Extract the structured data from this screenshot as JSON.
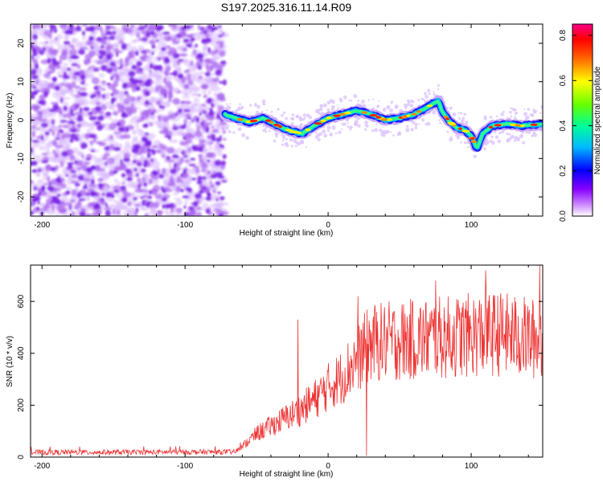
{
  "title": "S197.2025.316.11.14.R09",
  "chart_data": [
    {
      "type": "heatmap",
      "name": "spectrogram",
      "xlabel": "Height of straight line (km)",
      "ylabel": "Frequency (Hz)",
      "xlim": [
        -208,
        150
      ],
      "ylim": [
        -25,
        25
      ],
      "xticks": [
        -200,
        -100,
        0,
        100
      ],
      "yticks": [
        -20,
        -10,
        0,
        10,
        20
      ],
      "noise_region_x": [
        -208,
        -72
      ],
      "signal_region_x": [
        -72,
        150
      ],
      "ridge": {
        "x": [
          -72,
          -65,
          -55,
          -45,
          -35,
          -25,
          -18,
          -10,
          0,
          10,
          20,
          30,
          40,
          50,
          60,
          70,
          77,
          80,
          85,
          90,
          95,
          100,
          104,
          108,
          115,
          125,
          135,
          150
        ],
        "freq": [
          1.5,
          0.5,
          -0.5,
          0.5,
          -1.5,
          -3.0,
          -3.5,
          -1.5,
          0.5,
          1.5,
          2.5,
          1.5,
          0.0,
          0.5,
          1.5,
          3.5,
          5.0,
          2.0,
          -0.5,
          -2.0,
          -2.5,
          -4.0,
          -7.5,
          -3.5,
          -1.5,
          -1.0,
          -1.5,
          -1.0
        ]
      },
      "colorbar": {
        "label": "Normalized spectral amplitude",
        "range": [
          0.0,
          0.85
        ],
        "ticks": [
          0.0,
          0.2,
          0.4,
          0.6,
          0.8
        ],
        "tick_labels": [
          "0.0",
          "0.2",
          "0.4",
          "0.6",
          "0.8"
        ],
        "colors": [
          "#ffffff",
          "#8800ff",
          "#0000ff",
          "#00ddff",
          "#00ff66",
          "#ffff00",
          "#ff6600",
          "#ff0000",
          "#ff0088"
        ]
      }
    },
    {
      "type": "line",
      "name": "snr",
      "xlabel": "Height of straight line (km)",
      "ylabel": "SNR (10 * v/v)",
      "xlim": [
        -208,
        150
      ],
      "ylim": [
        0,
        740
      ],
      "xticks": [
        -200,
        -100,
        0,
        100
      ],
      "yticks": [
        0,
        200,
        400,
        600
      ],
      "color": "#ee3333",
      "trend": {
        "x": [
          -208,
          -65,
          -60,
          -50,
          -40,
          -30,
          -20,
          -10,
          0,
          10,
          20,
          30,
          50,
          80,
          100,
          120,
          150
        ],
        "y": [
          18,
          20,
          40,
          90,
          120,
          150,
          180,
          220,
          270,
          310,
          380,
          440,
          450,
          460,
          470,
          475,
          450
        ]
      },
      "spikes": [
        {
          "x": -21,
          "y": 530
        },
        {
          "x": 21,
          "y": 620
        },
        {
          "x": 27,
          "y": 5
        },
        {
          "x": 75,
          "y": 680
        },
        {
          "x": 110,
          "y": 720
        },
        {
          "x": 148,
          "y": 740
        }
      ]
    }
  ]
}
